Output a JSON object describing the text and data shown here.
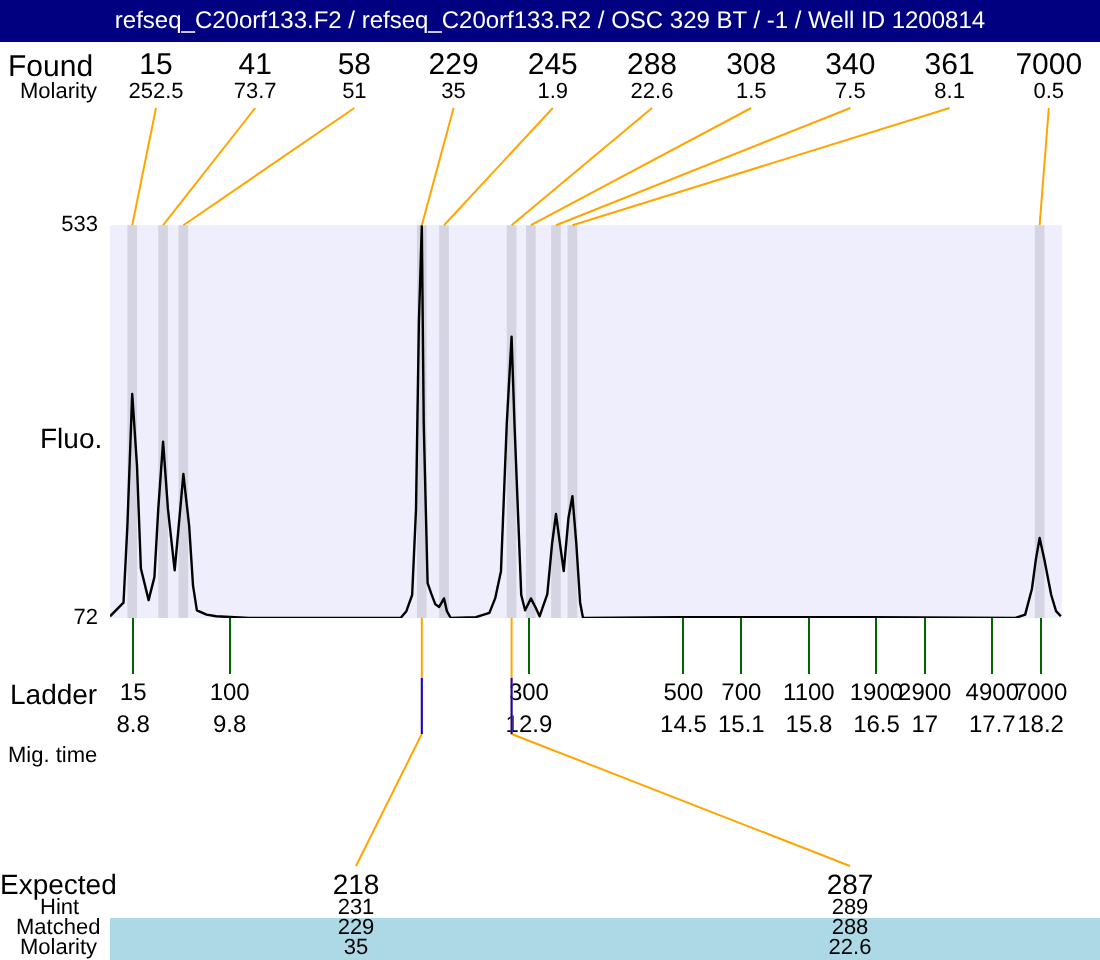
{
  "chart_data": {
    "type": "line",
    "title": "refseq_C20orf133.F2 / refseq_C20orf133.R2 / OSC 329 BT / -1  / Well ID 1200814",
    "ylabel": "Fluo.",
    "xlabel": "Mig. time",
    "x": [
      8.56,
      8.7,
      8.74,
      8.79,
      8.84,
      8.88,
      8.96,
      9.02,
      9.06,
      9.11,
      9.16,
      9.23,
      9.28,
      9.32,
      9.38,
      9.42,
      9.46,
      9.56,
      9.66,
      10.0,
      11.57,
      11.63,
      11.69,
      11.73,
      11.76,
      11.79,
      11.81,
      11.85,
      11.89,
      11.93,
      11.97,
      12.02,
      12.05,
      12.09,
      12.35,
      12.49,
      12.55,
      12.61,
      12.67,
      12.72,
      12.75,
      12.82,
      12.86,
      12.92,
      12.97,
      13.01,
      13.09,
      13.14,
      13.18,
      13.22,
      13.26,
      13.31,
      13.35,
      13.39,
      13.43,
      13.46,
      14.45,
      15.45,
      16.44,
      17.94,
      18.04,
      18.11,
      18.15,
      18.19,
      18.24,
      18.31,
      18.36,
      18.41
    ],
    "values": [
      74,
      90,
      180,
      335,
      250,
      130,
      93,
      120,
      200,
      279,
      200,
      128,
      190,
      241,
      180,
      110,
      81,
      76,
      74,
      72,
      72,
      80,
      99,
      200,
      420,
      533,
      300,
      113,
      100,
      88,
      85,
      95,
      80,
      72,
      73,
      78,
      95,
      127,
      300,
      402,
      300,
      99,
      81,
      95,
      84,
      74,
      100,
      160,
      194,
      160,
      127,
      190,
      215,
      160,
      90,
      72,
      73,
      73,
      73,
      72,
      76,
      106,
      140,
      166,
      140,
      99,
      80,
      74
    ],
    "color": "#000000",
    "marker": "none",
    "xlim": [
      8.56,
      18.42
    ],
    "xticks": [
      8.8,
      9.8,
      12.9,
      14.5,
      15.1,
      15.8,
      16.5,
      17,
      17.7,
      18.2
    ],
    "ylim": [
      72,
      533
    ],
    "yticks": [
      72,
      533
    ],
    "bands": [
      {
        "axis": "x",
        "from": 8.74,
        "to": 8.84,
        "color": "#d4d4e2"
      },
      {
        "axis": "x",
        "from": 9.06,
        "to": 9.16,
        "color": "#d4d4e2"
      },
      {
        "axis": "x",
        "from": 9.27,
        "to": 9.37,
        "color": "#d4d4e2"
      },
      {
        "axis": "x",
        "from": 11.74,
        "to": 11.84,
        "color": "#d4d4e2"
      },
      {
        "axis": "x",
        "from": 11.97,
        "to": 12.07,
        "color": "#d4d4e2"
      },
      {
        "axis": "x",
        "from": 12.67,
        "to": 12.77,
        "color": "#d4d4e2"
      },
      {
        "axis": "x",
        "from": 12.87,
        "to": 12.97,
        "color": "#d4d4e2"
      },
      {
        "axis": "x",
        "from": 13.13,
        "to": 13.23,
        "color": "#d4d4e2"
      },
      {
        "axis": "x",
        "from": 13.3,
        "to": 13.4,
        "color": "#d4d4e2"
      },
      {
        "axis": "x",
        "from": 18.14,
        "to": 18.24,
        "color": "#d4d4e2"
      }
    ],
    "annotations": [
      "Found",
      "Molarity",
      {
        "text": "15",
        "x": 8.79,
        "y": 533
      },
      {
        "text": "41",
        "x": 9.11,
        "y": 533
      },
      {
        "text": "58",
        "x": 9.32,
        "y": 533
      },
      {
        "text": "229",
        "x": 11.79,
        "y": 533
      },
      {
        "text": "245",
        "x": 12.02,
        "y": 533
      },
      {
        "text": "288",
        "x": 12.72,
        "y": 533
      },
      {
        "text": "308",
        "x": 12.92,
        "y": 533
      },
      {
        "text": "340",
        "x": 13.18,
        "y": 533
      },
      {
        "text": "361",
        "x": 13.35,
        "y": 533
      },
      {
        "text": "7000",
        "x": 18.19,
        "y": 533
      },
      "252.5",
      "73.7",
      "51",
      "35",
      "1.9",
      "22.6",
      "1.5",
      "7.5",
      "8.1",
      "0.5",
      "Ladder",
      {
        "text": "15",
        "x": 8.8,
        "y": 72
      },
      {
        "text": "100",
        "x": 9.8,
        "y": 72
      },
      {
        "text": "300",
        "x": 12.9,
        "y": 72
      },
      {
        "text": "500",
        "x": 14.5,
        "y": 72
      },
      {
        "text": "700",
        "x": 15.1,
        "y": 72
      },
      {
        "text": "1100",
        "x": 15.8,
        "y": 72
      },
      {
        "text": "1900",
        "x": 16.5,
        "y": 72
      },
      {
        "text": "2900",
        "x": 17,
        "y": 72
      },
      {
        "text": "4900",
        "x": 17.7,
        "y": 72
      },
      {
        "text": "7000",
        "x": 18.2,
        "y": 72
      },
      "Expected",
      "Hint",
      "Matched",
      "Molarity",
      {
        "text": "218",
        "x": 11.79,
        "y": 72
      },
      {
        "text": "287",
        "x": 12.72,
        "y": 72
      },
      "231",
      "229",
      "35",
      "289",
      "288",
      "22.6"
    ],
    "legend": false
  }
}
